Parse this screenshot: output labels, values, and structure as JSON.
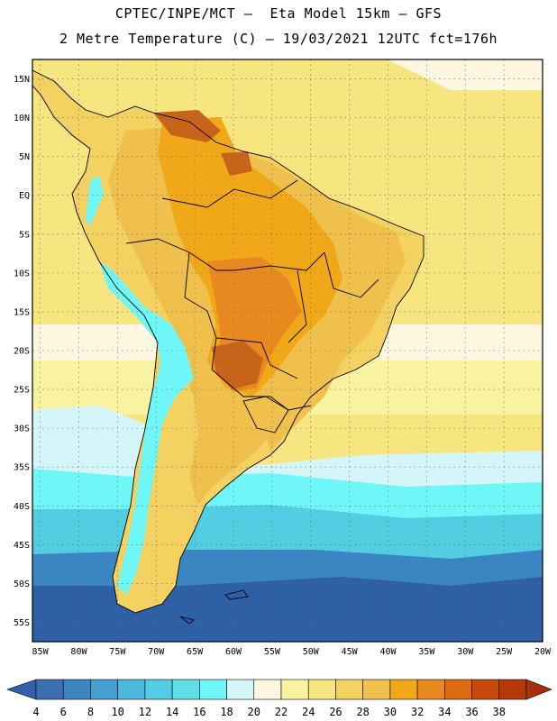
{
  "title_line1": "CPTEC/INPE/MCT –  Eta Model 15km – GFS",
  "title_line2": "2 Metre Temperature (C) – 19/03/2021 12UTC fct=176h",
  "lat_labels": [
    "15N",
    "10N",
    "5N",
    "EQ",
    "5S",
    "10S",
    "15S",
    "20S",
    "25S",
    "30S",
    "35S",
    "40S",
    "45S",
    "50S",
    "55S"
  ],
  "lat_values": [
    15,
    10,
    5,
    0,
    -5,
    -10,
    -15,
    -20,
    -25,
    -30,
    -35,
    -40,
    -45,
    -50,
    -55
  ],
  "lon_labels": [
    "85W",
    "80W",
    "75W",
    "70W",
    "65W",
    "60W",
    "55W",
    "50W",
    "45W",
    "40W",
    "35W",
    "30W",
    "25W",
    "20W"
  ],
  "lon_values": [
    -85,
    -80,
    -75,
    -70,
    -65,
    -60,
    -55,
    -50,
    -45,
    -40,
    -35,
    -30,
    -25,
    -20
  ],
  "colorbar": {
    "labels": [
      "4",
      "6",
      "8",
      "10",
      "12",
      "14",
      "16",
      "18",
      "20",
      "22",
      "24",
      "26",
      "28",
      "30",
      "32",
      "34",
      "36",
      "38"
    ],
    "colors": [
      "#3c6fb0",
      "#3d86bf",
      "#45a0cf",
      "#4cb8da",
      "#52cde2",
      "#5fdfe8",
      "#6ff7f7",
      "#d4f6f9",
      "#fdf7e1",
      "#f9f2a1",
      "#f7e580",
      "#f4d262",
      "#efc04c",
      "#f0a818",
      "#e98a20",
      "#df6a10",
      "#c84a0a",
      "#b5380a"
    ],
    "below_color": "#2f60a8",
    "above_color": "#a8300a"
  },
  "map_colors": {
    "ocean_deep": "#2e60a6",
    "ocean_mid": "#3a86c2",
    "ocean_cool": "#52cde2",
    "ocean_cyan": "#6ff7f7",
    "ocean_pale": "#d4f6f9",
    "ocean_cream": "#fdf7e1",
    "ocean_yellow": "#f9f2a1",
    "ocean_warm": "#f7e580",
    "land_base": "#f4d262",
    "land_warm": "#efc04c",
    "land_hot": "#f0a818",
    "land_hotter": "#e98a20",
    "land_hottest": "#c8641a",
    "andes_cold": "#6ff7f7"
  }
}
